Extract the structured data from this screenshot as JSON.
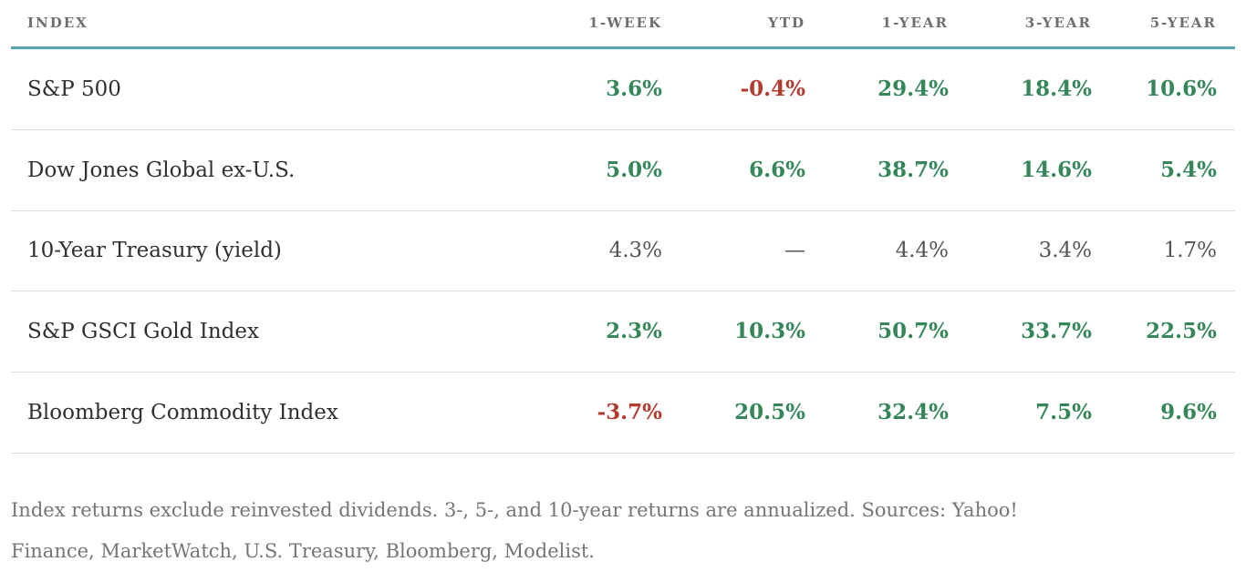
{
  "chart_data": {
    "type": "table",
    "columns": [
      "INDEX",
      "1-WEEK",
      "YTD",
      "1-YEAR",
      "3-YEAR",
      "5-YEAR"
    ],
    "rows": [
      {
        "name": "S&P 500",
        "values": [
          {
            "text": "3.6%",
            "tone": "pos"
          },
          {
            "text": "-0.4%",
            "tone": "neg"
          },
          {
            "text": "29.4%",
            "tone": "pos"
          },
          {
            "text": "18.4%",
            "tone": "pos"
          },
          {
            "text": "10.6%",
            "tone": "pos"
          }
        ]
      },
      {
        "name": "Dow Jones Global ex-U.S.",
        "values": [
          {
            "text": "5.0%",
            "tone": "pos"
          },
          {
            "text": "6.6%",
            "tone": "pos"
          },
          {
            "text": "38.7%",
            "tone": "pos"
          },
          {
            "text": "14.6%",
            "tone": "pos"
          },
          {
            "text": "5.4%",
            "tone": "pos"
          }
        ]
      },
      {
        "name": "10-Year Treasury (yield)",
        "values": [
          {
            "text": "4.3%",
            "tone": "neutral"
          },
          {
            "text": "—",
            "tone": "neutral"
          },
          {
            "text": "4.4%",
            "tone": "neutral"
          },
          {
            "text": "3.4%",
            "tone": "neutral"
          },
          {
            "text": "1.7%",
            "tone": "neutral"
          }
        ]
      },
      {
        "name": "S&P GSCI Gold Index",
        "values": [
          {
            "text": "2.3%",
            "tone": "pos"
          },
          {
            "text": "10.3%",
            "tone": "pos"
          },
          {
            "text": "50.7%",
            "tone": "pos"
          },
          {
            "text": "33.7%",
            "tone": "pos"
          },
          {
            "text": "22.5%",
            "tone": "pos"
          }
        ]
      },
      {
        "name": "Bloomberg Commodity Index",
        "values": [
          {
            "text": "-3.7%",
            "tone": "neg"
          },
          {
            "text": "20.5%",
            "tone": "pos"
          },
          {
            "text": "32.4%",
            "tone": "pos"
          },
          {
            "text": "7.5%",
            "tone": "pos"
          },
          {
            "text": "9.6%",
            "tone": "pos"
          }
        ]
      }
    ]
  },
  "footnote": "Index returns exclude reinvested dividends. 3-, 5-, and 10-year returns are annualized. Sources: Yahoo! Finance, MarketWatch, U.S. Treasury, Bloomberg, Modelist.",
  "colors": {
    "pos": "#358759",
    "neg": "#b23a2f",
    "neutral": "#545454",
    "accent": "#54a5b0",
    "name": "#2f2f2f",
    "header": "#6e6e6e",
    "divider": "#dcdcdc",
    "footnote": "#757575"
  }
}
